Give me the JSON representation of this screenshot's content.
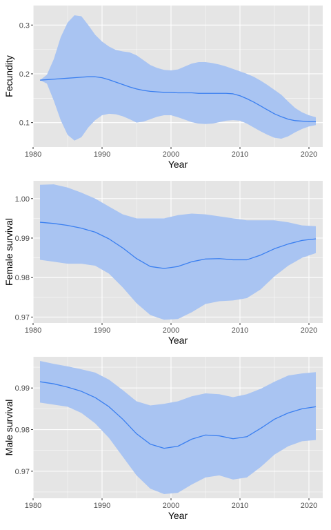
{
  "colors": {
    "panel_bg": "#e5e5e5",
    "grid_major": "#ffffff",
    "ribbon": "#a9c4f2",
    "line": "#3a7ff0",
    "tick_text": "#4d4d4d",
    "tick_mark": "#333333"
  },
  "chart_data": [
    {
      "type": "line",
      "xlabel": "Year",
      "ylabel": "Fecundity",
      "xlim": [
        1980,
        2022
      ],
      "ylim": [
        0.05,
        0.34
      ],
      "xticks": [
        1980,
        1990,
        2000,
        2010,
        2020
      ],
      "xtick_labels": [
        "1980",
        "1990",
        "2000",
        "2010",
        "2020"
      ],
      "yticks": [
        0.1,
        0.2,
        0.3
      ],
      "ytick_labels": [
        "0.1",
        "0.2",
        "0.3"
      ],
      "x": [
        1981,
        1982,
        1983,
        1984,
        1985,
        1986,
        1987,
        1988,
        1989,
        1990,
        1991,
        1992,
        1993,
        1994,
        1995,
        1996,
        1997,
        1998,
        1999,
        2000,
        2001,
        2002,
        2003,
        2004,
        2005,
        2006,
        2007,
        2008,
        2009,
        2010,
        2011,
        2012,
        2013,
        2014,
        2015,
        2016,
        2017,
        2018,
        2019,
        2020,
        2021
      ],
      "y": [
        0.187,
        0.188,
        0.189,
        0.19,
        0.191,
        0.192,
        0.193,
        0.194,
        0.194,
        0.192,
        0.188,
        0.183,
        0.178,
        0.173,
        0.169,
        0.166,
        0.164,
        0.163,
        0.162,
        0.162,
        0.161,
        0.161,
        0.161,
        0.16,
        0.16,
        0.16,
        0.16,
        0.16,
        0.159,
        0.155,
        0.149,
        0.142,
        0.134,
        0.126,
        0.118,
        0.112,
        0.107,
        0.104,
        0.103,
        0.102,
        0.102
      ],
      "lower": [
        0.187,
        0.18,
        0.145,
        0.105,
        0.075,
        0.063,
        0.07,
        0.09,
        0.105,
        0.115,
        0.118,
        0.117,
        0.113,
        0.107,
        0.1,
        0.102,
        0.107,
        0.112,
        0.115,
        0.115,
        0.111,
        0.106,
        0.101,
        0.098,
        0.097,
        0.098,
        0.101,
        0.104,
        0.105,
        0.104,
        0.098,
        0.09,
        0.082,
        0.075,
        0.069,
        0.067,
        0.072,
        0.08,
        0.087,
        0.092,
        0.095
      ],
      "upper": [
        0.187,
        0.198,
        0.23,
        0.275,
        0.305,
        0.32,
        0.318,
        0.3,
        0.28,
        0.266,
        0.256,
        0.249,
        0.246,
        0.244,
        0.238,
        0.228,
        0.218,
        0.212,
        0.208,
        0.207,
        0.209,
        0.215,
        0.221,
        0.224,
        0.224,
        0.222,
        0.219,
        0.215,
        0.21,
        0.205,
        0.2,
        0.194,
        0.186,
        0.177,
        0.167,
        0.157,
        0.143,
        0.13,
        0.121,
        0.115,
        0.111
      ]
    },
    {
      "type": "line",
      "xlabel": "Year",
      "ylabel": "Female survival",
      "xlim": [
        1980,
        2022
      ],
      "ylim": [
        0.9685,
        1.0045
      ],
      "xticks": [
        1980,
        1990,
        2000,
        2010,
        2020
      ],
      "xtick_labels": [
        "1980",
        "1990",
        "2000",
        "2010",
        "2020"
      ],
      "yticks": [
        0.97,
        0.98,
        0.99,
        1.0
      ],
      "ytick_labels": [
        "0.97",
        "0.98",
        "0.99",
        "1.00"
      ],
      "x": [
        1981,
        1983,
        1985,
        1987,
        1989,
        1991,
        1993,
        1995,
        1997,
        1999,
        2001,
        2003,
        2005,
        2007,
        2009,
        2011,
        2013,
        2015,
        2017,
        2019,
        2021
      ],
      "y": [
        0.994,
        0.9937,
        0.9932,
        0.9925,
        0.9915,
        0.9898,
        0.9875,
        0.9848,
        0.9828,
        0.9823,
        0.9828,
        0.984,
        0.9847,
        0.9848,
        0.9845,
        0.9845,
        0.9857,
        0.9873,
        0.9885,
        0.9894,
        0.9898
      ],
      "lower": [
        0.9845,
        0.984,
        0.9835,
        0.9835,
        0.983,
        0.981,
        0.9775,
        0.9735,
        0.9705,
        0.9693,
        0.9695,
        0.9712,
        0.9733,
        0.974,
        0.9742,
        0.9748,
        0.977,
        0.9803,
        0.983,
        0.985,
        0.9862
      ],
      "upper": [
        1.0035,
        1.0036,
        1.0028,
        1.0015,
        1.0,
        0.998,
        0.996,
        0.995,
        0.995,
        0.995,
        0.9958,
        0.9962,
        0.996,
        0.9955,
        0.995,
        0.9945,
        0.9945,
        0.9945,
        0.994,
        0.9932,
        0.993
      ]
    },
    {
      "type": "line",
      "xlabel": "Year",
      "ylabel": "Male survival",
      "xlim": [
        1980,
        2022
      ],
      "ylim": [
        0.9635,
        0.9975
      ],
      "xticks": [
        1980,
        1990,
        2000,
        2010,
        2020
      ],
      "xtick_labels": [
        "1980",
        "1990",
        "2000",
        "2010",
        "2020"
      ],
      "yticks": [
        0.97,
        0.98,
        0.99
      ],
      "ytick_labels": [
        "0.97",
        "0.98",
        "0.99"
      ],
      "x": [
        1981,
        1983,
        1985,
        1987,
        1989,
        1991,
        1993,
        1995,
        1997,
        1999,
        2001,
        2003,
        2005,
        2007,
        2009,
        2011,
        2013,
        2015,
        2017,
        2019,
        2021
      ],
      "y": [
        0.9915,
        0.991,
        0.9902,
        0.9892,
        0.9877,
        0.9855,
        0.9825,
        0.979,
        0.9765,
        0.9755,
        0.976,
        0.9777,
        0.9787,
        0.9785,
        0.9778,
        0.9783,
        0.9803,
        0.9825,
        0.984,
        0.985,
        0.9855
      ],
      "lower": [
        0.9865,
        0.986,
        0.9855,
        0.984,
        0.9815,
        0.978,
        0.9735,
        0.969,
        0.9658,
        0.9645,
        0.9648,
        0.9668,
        0.9685,
        0.969,
        0.968,
        0.9685,
        0.971,
        0.974,
        0.976,
        0.9772,
        0.9775
      ],
      "upper": [
        0.9965,
        0.9958,
        0.9952,
        0.9945,
        0.9937,
        0.992,
        0.9895,
        0.9868,
        0.9858,
        0.9862,
        0.9868,
        0.988,
        0.9887,
        0.9885,
        0.9878,
        0.9885,
        0.9898,
        0.9915,
        0.993,
        0.9935,
        0.9938
      ]
    }
  ]
}
